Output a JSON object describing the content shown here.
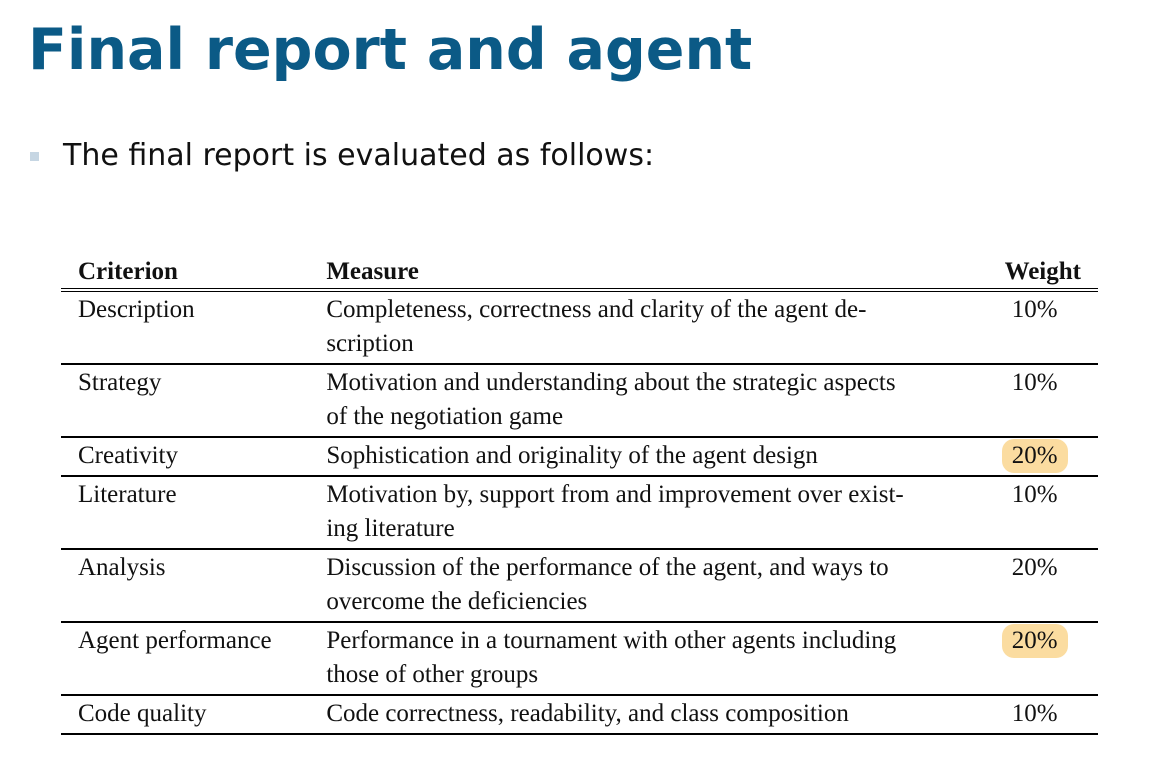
{
  "slide": {
    "title": "Final report and agent",
    "bullet": "The final report is evaluated as follows:"
  },
  "table": {
    "headers": {
      "criterion": "Criterion",
      "measure": "Measure",
      "weight": "Weight"
    },
    "rows": [
      {
        "criterion": "Description",
        "measure": "Completeness, correctness and clarity of the agent de-scription",
        "weight": "10%",
        "highlighted": false
      },
      {
        "criterion": "Strategy",
        "measure": "Motivation and understanding about the strategic aspects of the negotiation game",
        "weight": "10%",
        "highlighted": false
      },
      {
        "criterion": "Creativity",
        "measure": "Sophistication and originality of the agent design",
        "weight": "20%",
        "highlighted": true
      },
      {
        "criterion": "Literature",
        "measure": "Motivation by, support from and improvement over exist-ing literature",
        "weight": "10%",
        "highlighted": false
      },
      {
        "criterion": "Analysis",
        "measure": "Discussion of the performance of the agent, and ways to overcome the deficiencies",
        "weight": "20%",
        "highlighted": false
      },
      {
        "criterion": "Agent performance",
        "measure": "Performance in a tournament with other agents including those of other groups",
        "weight": "20%",
        "highlighted": true
      },
      {
        "criterion": "Code quality",
        "measure": "Code correctness, readability, and class composition",
        "weight": "10%",
        "highlighted": false
      }
    ],
    "highlight_color": "#fbdca0"
  },
  "colors": {
    "title": "#0b5a86",
    "bullet_marker": "#c6d6e3"
  }
}
